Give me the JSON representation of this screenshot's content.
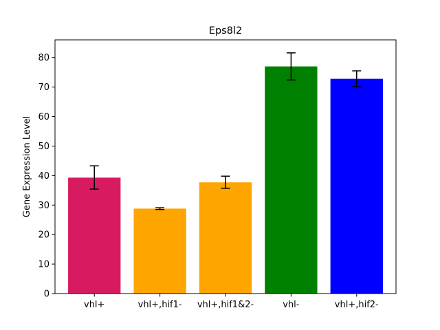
{
  "chart_data": {
    "type": "bar",
    "title": "Eps8l2",
    "xlabel": "",
    "ylabel": "Gene Expression Level",
    "categories": [
      "vhl+",
      "vhl+,hif1-",
      "vhl+,hif1&2-",
      "vhl-",
      "vhl+,hif2-"
    ],
    "values": [
      39.3,
      28.8,
      37.7,
      77.0,
      72.8
    ],
    "error_low": [
      35.4,
      28.5,
      35.7,
      72.4,
      70.1
    ],
    "error_high": [
      43.3,
      29.1,
      39.8,
      81.6,
      75.5
    ],
    "colors": [
      "#d81b60",
      "#ffa500",
      "#ffa500",
      "#008000",
      "#0000ff"
    ],
    "ylim": [
      0,
      86
    ],
    "yticks": [
      0,
      10,
      20,
      30,
      40,
      50,
      60,
      70,
      80
    ],
    "grid": false,
    "legend": "none"
  }
}
